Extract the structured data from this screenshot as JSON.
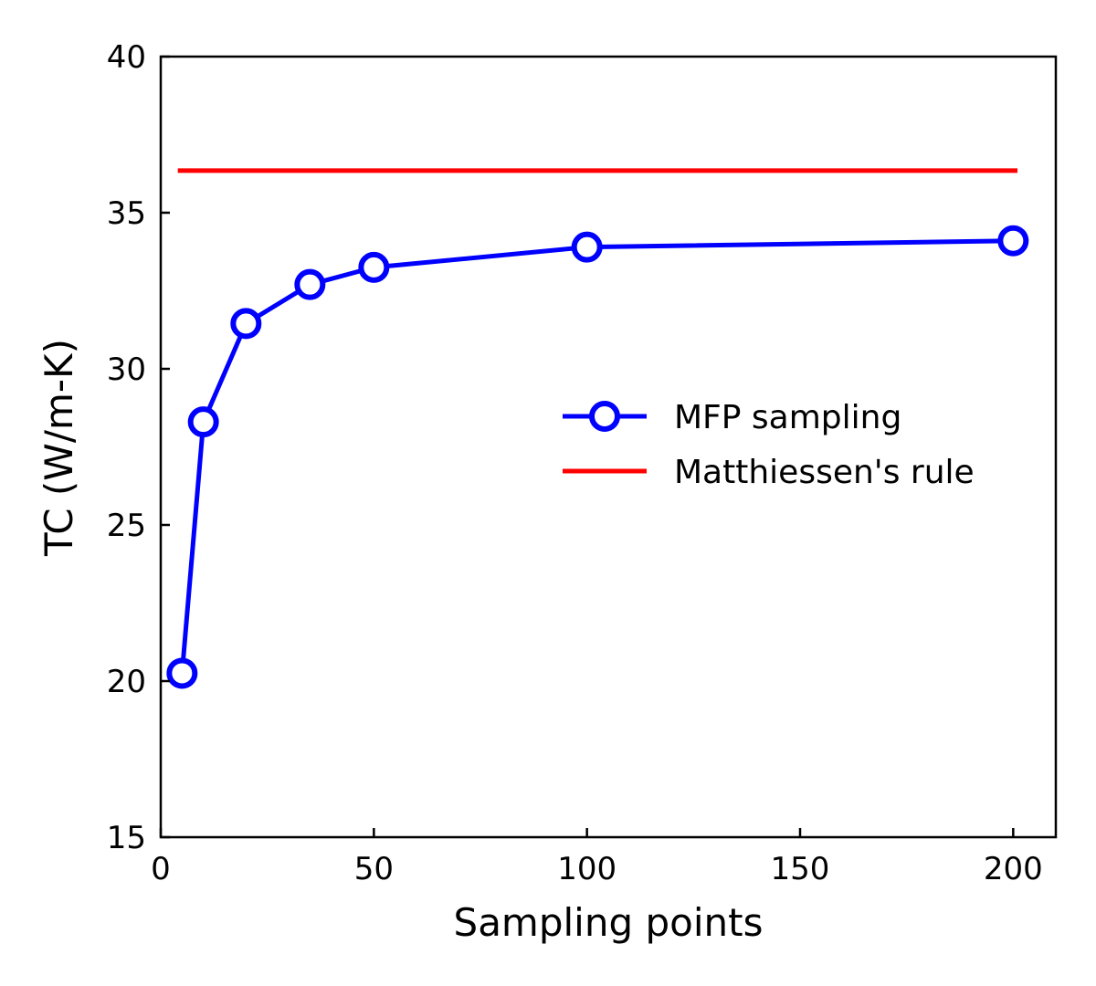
{
  "chart_data": {
    "type": "line",
    "xlabel": "Sampling points",
    "ylabel": "TC (W/m-K)",
    "xlim": [
      0,
      210
    ],
    "ylim": [
      15,
      40
    ],
    "xticks": [
      0,
      50,
      100,
      150,
      200
    ],
    "yticks": [
      15,
      20,
      25,
      30,
      35,
      40
    ],
    "legend_position": "center-right",
    "series": [
      {
        "name": "MFP sampling",
        "color": "#0000ff",
        "marker": "open-circle",
        "x": [
          5,
          10,
          20,
          35,
          50,
          100,
          200
        ],
        "y": [
          20.25,
          28.3,
          31.45,
          32.7,
          33.25,
          33.9,
          34.1
        ]
      },
      {
        "name": "Matthiessen's rule",
        "color": "#ff0000",
        "marker": "none",
        "x": [
          4,
          201
        ],
        "y": [
          36.35,
          36.35
        ]
      }
    ]
  }
}
